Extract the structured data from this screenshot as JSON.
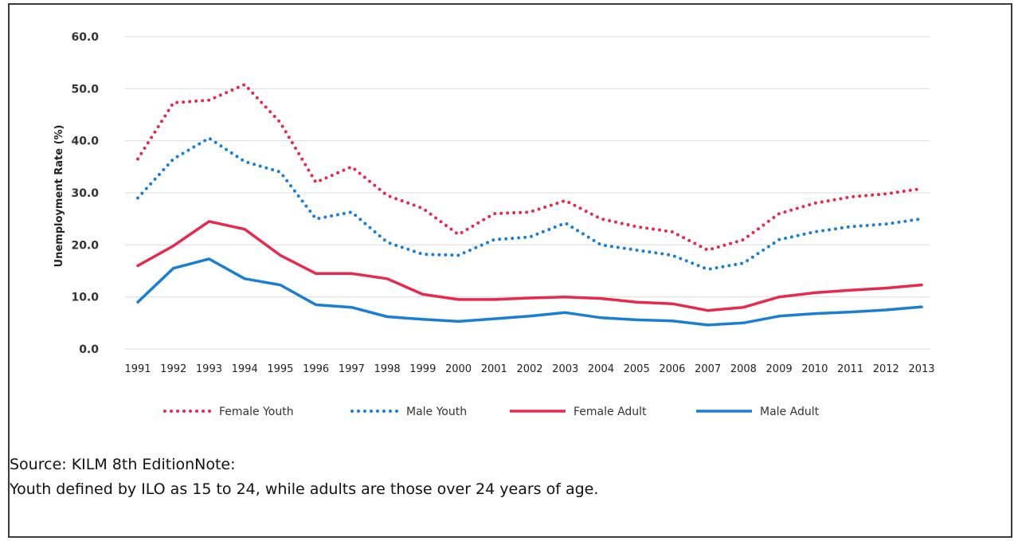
{
  "chart_data": {
    "type": "line",
    "title": "",
    "xlabel": "",
    "ylabel": "Unemployment Rate (%)",
    "ylim": [
      0,
      60
    ],
    "yticks": [
      "0.0",
      "10.0",
      "20.0",
      "30.0",
      "40.0",
      "50.0",
      "60.0"
    ],
    "grid": "horizontal",
    "legend_position": "bottom",
    "x": [
      "1991",
      "1992",
      "1993",
      "1994",
      "1995",
      "1996",
      "1997",
      "1998",
      "1999",
      "2000",
      "2001",
      "2002",
      "2003",
      "2004",
      "2005",
      "2006",
      "2007",
      "2008",
      "2009",
      "2010",
      "2011",
      "2012",
      "2013"
    ],
    "series": [
      {
        "name": "Female Youth",
        "style": "dotted",
        "color": "#e8294d",
        "values": [
          36.5,
          47.3,
          47.8,
          50.8,
          43.5,
          32.0,
          35.0,
          29.5,
          27.0,
          22.0,
          26.0,
          26.3,
          28.5,
          25.0,
          23.5,
          22.5,
          19.0,
          21.0,
          26.0,
          28.0,
          29.2,
          29.8,
          30.8
        ]
      },
      {
        "name": "Male Youth",
        "style": "dotted",
        "color": "#1a7fd4",
        "values": [
          29.0,
          36.5,
          40.5,
          36.0,
          34.0,
          25.0,
          26.3,
          20.5,
          18.2,
          18.0,
          21.0,
          21.5,
          24.2,
          20.0,
          19.0,
          18.0,
          15.3,
          16.5,
          21.0,
          22.5,
          23.5,
          24.0,
          25.0
        ]
      },
      {
        "name": "Female Adult",
        "style": "solid",
        "color": "#e8294d",
        "values": [
          16.0,
          19.8,
          24.5,
          23.0,
          18.0,
          14.5,
          14.5,
          13.5,
          10.5,
          9.5,
          9.5,
          9.8,
          10.0,
          9.7,
          9.0,
          8.7,
          7.4,
          8.0,
          10.0,
          10.8,
          11.3,
          11.7,
          12.3
        ]
      },
      {
        "name": "Male Adult",
        "style": "solid",
        "color": "#1a7fd4",
        "values": [
          9.0,
          15.5,
          17.3,
          13.5,
          12.3,
          8.5,
          8.0,
          6.2,
          5.7,
          5.3,
          5.8,
          6.3,
          7.0,
          6.0,
          5.6,
          5.4,
          4.6,
          5.0,
          6.3,
          6.8,
          7.1,
          7.5,
          8.1
        ]
      }
    ]
  },
  "notes": {
    "source": "Source: KILM 8th EditionNote:",
    "text": "Youth defined by ILO as 15 to 24, while adults are those over 24 years of age."
  }
}
